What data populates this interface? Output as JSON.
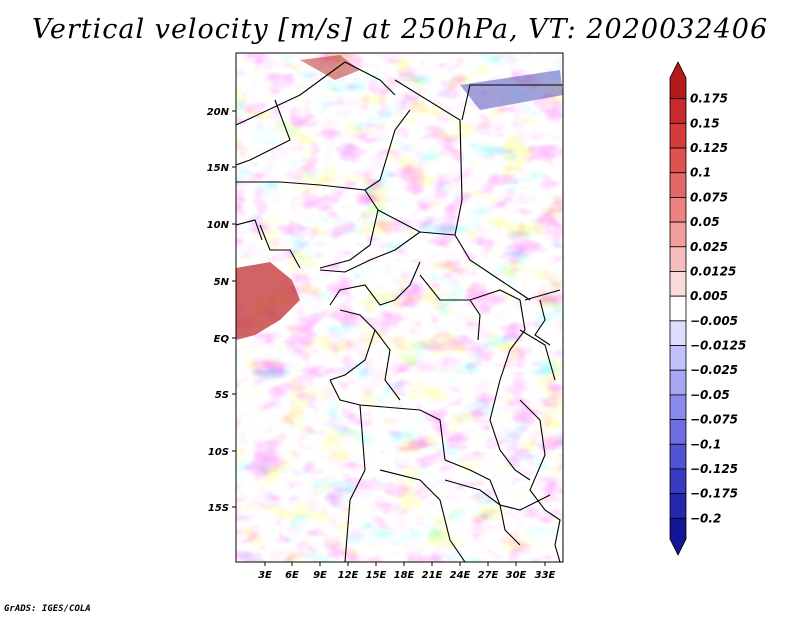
{
  "title": "Vertical velocity [m/s] at 250hPa, VT: 2020032406",
  "footer": "GrADS: IGES/COLA",
  "lat_labels": [
    "20N",
    "15N",
    "10N",
    "5N",
    "EQ",
    "5S",
    "10S",
    "15S"
  ],
  "lon_labels": [
    "3E",
    "6E",
    "9E",
    "12E",
    "15E",
    "18E",
    "21E",
    "24E",
    "27E",
    "30E",
    "33E"
  ],
  "colorbar": {
    "labels": [
      "0.175",
      "0.15",
      "0.125",
      "0.1",
      "0.075",
      "0.05",
      "0.025",
      "0.0125",
      "0.005",
      "−0.005",
      "−0.0125",
      "−0.025",
      "−0.05",
      "−0.075",
      "−0.1",
      "−0.125",
      "−0.175",
      "−0.2"
    ],
    "colors": [
      "#b31a1a",
      "#c62a2a",
      "#d43c3c",
      "#de5252",
      "#e56868",
      "#ec8282",
      "#f29e9e",
      "#f7bcbc",
      "#fbdada",
      "#ffffff",
      "#dedeff",
      "#c2c2fa",
      "#a6a6f2",
      "#8a8aec",
      "#6e6ee2",
      "#5252d4",
      "#3a3ac2",
      "#2626b0",
      "#141496"
    ]
  },
  "colors": {
    "positive": "#e07070",
    "negative": "#7a7ae8",
    "neutral": "#ffffff",
    "border": "#000000"
  }
}
